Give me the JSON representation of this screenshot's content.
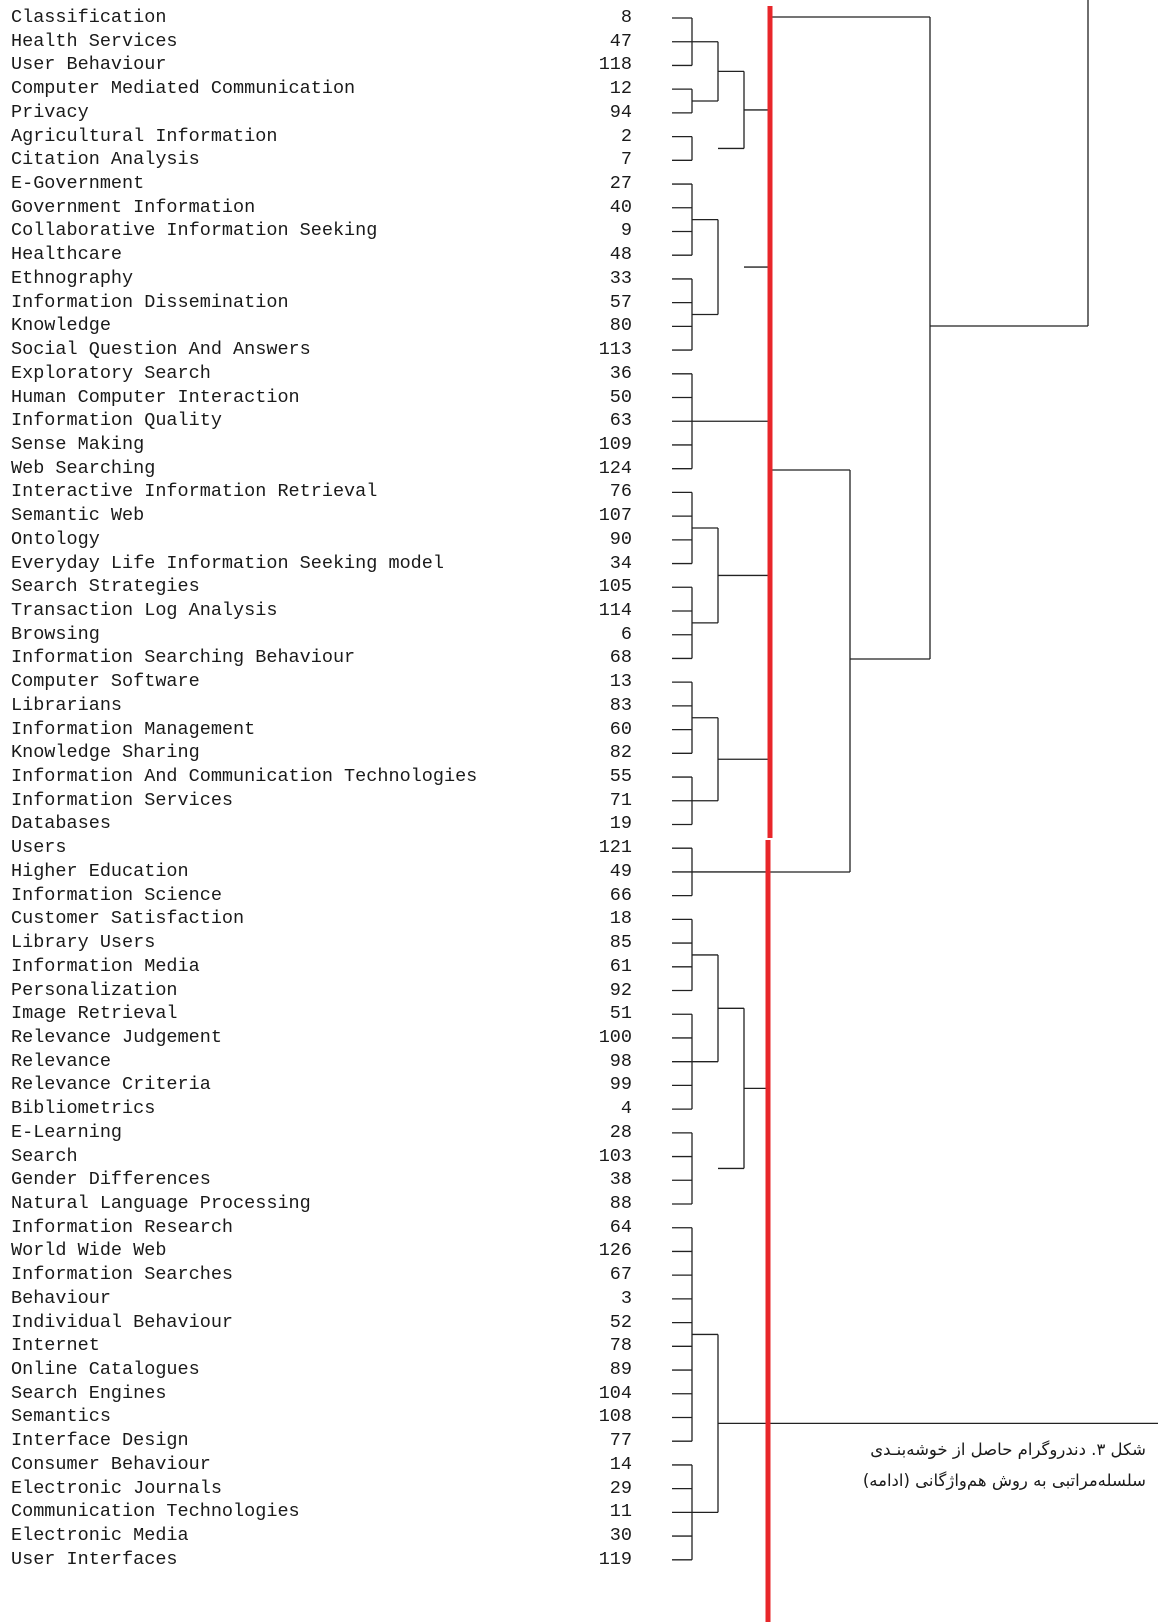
{
  "leaves": [
    {
      "label": "Classification",
      "id": "8"
    },
    {
      "label": "Health Services",
      "id": "47"
    },
    {
      "label": "User Behaviour",
      "id": "118"
    },
    {
      "label": "Computer Mediated Communication",
      "id": "12"
    },
    {
      "label": "Privacy",
      "id": "94"
    },
    {
      "label": "Agricultural Information",
      "id": "2"
    },
    {
      "label": "Citation Analysis",
      "id": "7"
    },
    {
      "label": "E-Government",
      "id": "27"
    },
    {
      "label": "Government Information",
      "id": "40"
    },
    {
      "label": "Collaborative Information Seeking",
      "id": "9"
    },
    {
      "label": "Healthcare",
      "id": "48"
    },
    {
      "label": "Ethnography",
      "id": "33"
    },
    {
      "label": "Information Dissemination",
      "id": "57"
    },
    {
      "label": "Knowledge",
      "id": "80"
    },
    {
      "label": "Social Question And Answers",
      "id": "113"
    },
    {
      "label": "Exploratory Search",
      "id": "36"
    },
    {
      "label": "Human Computer Interaction",
      "id": "50"
    },
    {
      "label": "Information Quality",
      "id": "63"
    },
    {
      "label": "Sense Making",
      "id": "109"
    },
    {
      "label": "Web Searching",
      "id": "124"
    },
    {
      "label": "Interactive Information Retrieval",
      "id": "76"
    },
    {
      "label": "Semantic Web",
      "id": "107"
    },
    {
      "label": "Ontology",
      "id": "90"
    },
    {
      "label": "Everyday Life Information Seeking model",
      "id": "34"
    },
    {
      "label": "Search Strategies",
      "id": "105"
    },
    {
      "label": "Transaction Log Analysis",
      "id": "114"
    },
    {
      "label": "Browsing",
      "id": "6"
    },
    {
      "label": "Information Searching Behaviour",
      "id": "68"
    },
    {
      "label": "Computer Software",
      "id": "13"
    },
    {
      "label": "Librarians",
      "id": "83"
    },
    {
      "label": "Information Management",
      "id": "60"
    },
    {
      "label": "Knowledge Sharing",
      "id": "82"
    },
    {
      "label": "Information And Communication Technologies",
      "id": "55"
    },
    {
      "label": "Information Services",
      "id": "71"
    },
    {
      "label": "Databases",
      "id": "19"
    },
    {
      "label": "Users",
      "id": "121"
    },
    {
      "label": "Higher Education",
      "id": "49"
    },
    {
      "label": "Information Science",
      "id": "66"
    },
    {
      "label": "Customer Satisfaction",
      "id": "18"
    },
    {
      "label": "Library Users",
      "id": "85"
    },
    {
      "label": "Information Media",
      "id": "61"
    },
    {
      "label": "Personalization",
      "id": "92"
    },
    {
      "label": "Image Retrieval",
      "id": "51"
    },
    {
      "label": "Relevance Judgement",
      "id": "100"
    },
    {
      "label": "Relevance",
      "id": "98"
    },
    {
      "label": "Relevance Criteria",
      "id": "99"
    },
    {
      "label": "Bibliometrics",
      "id": "4"
    },
    {
      "label": "E-Learning",
      "id": "28"
    },
    {
      "label": "Search",
      "id": "103"
    },
    {
      "label": "Gender Differences",
      "id": "38"
    },
    {
      "label": "Natural Language Processing",
      "id": "88"
    },
    {
      "label": "Information Research",
      "id": "64"
    },
    {
      "label": "World Wide Web",
      "id": "126"
    },
    {
      "label": "Information Searches",
      "id": "67"
    },
    {
      "label": "Behaviour",
      "id": "3"
    },
    {
      "label": "Individual Behaviour",
      "id": "52"
    },
    {
      "label": "Internet",
      "id": "78"
    },
    {
      "label": "Online Catalogues",
      "id": "89"
    },
    {
      "label": "Search Engines",
      "id": "104"
    },
    {
      "label": "Semantics",
      "id": "108"
    },
    {
      "label": "Interface Design",
      "id": "77"
    },
    {
      "label": "Consumer Behaviour",
      "id": "14"
    },
    {
      "label": "Electronic Journals",
      "id": "29"
    },
    {
      "label": "Communication Technologies",
      "id": "11"
    },
    {
      "label": "Electronic Media",
      "id": "30"
    },
    {
      "label": "User Interfaces",
      "id": "119"
    }
  ],
  "clusters": [
    {
      "members": [
        0,
        2
      ]
    },
    {
      "members": [
        3,
        4
      ]
    },
    {
      "members": [
        5,
        6
      ]
    },
    {
      "members": [
        7,
        10
      ]
    },
    {
      "members": [
        11,
        14
      ]
    },
    {
      "members": [
        15,
        19
      ]
    },
    {
      "members": [
        20,
        23
      ]
    },
    {
      "members": [
        24,
        27
      ]
    },
    {
      "members": [
        28,
        31
      ]
    },
    {
      "members": [
        32,
        34
      ]
    },
    {
      "members": [
        35,
        37
      ]
    },
    {
      "members": [
        38,
        41
      ]
    },
    {
      "members": [
        42,
        46
      ]
    },
    {
      "members": [
        47,
        50
      ]
    },
    {
      "members": [
        51,
        60
      ]
    },
    {
      "members": [
        61,
        65
      ]
    }
  ],
  "cut_line_color": "#e8262a",
  "caption": {
    "line1": "شکل ۳. دندروگرام حاصل از خوشه‌بنـدی",
    "line2": "سلسله‌مراتبی به روش هم‌واژگانی (ادامه)"
  }
}
